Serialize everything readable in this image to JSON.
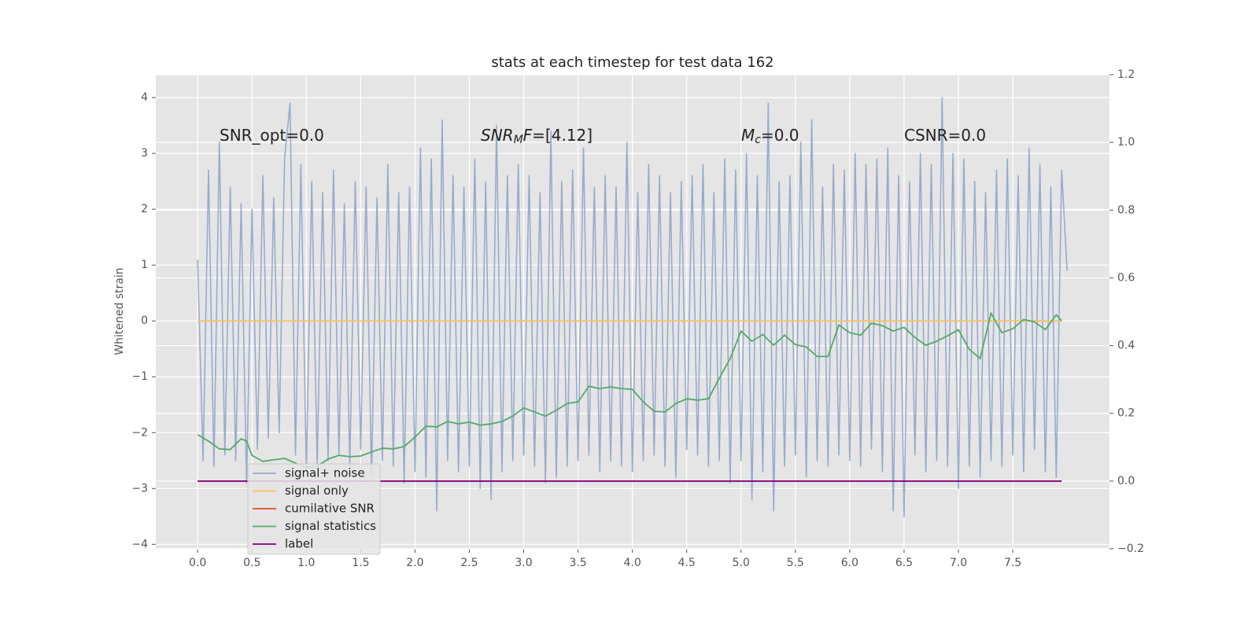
{
  "chart_data": {
    "type": "line",
    "title": "stats at each timestep for test data 162",
    "ylabel": "Whitened strain",
    "xlim": [
      -0.385,
      8.39
    ],
    "ylim": [
      -4.08,
      4.41
    ],
    "y2lim": [
      -0.2,
      1.2
    ],
    "xticks": [
      {
        "value": 0,
        "label": "0.0"
      },
      {
        "value": 0.5,
        "label": "0.5"
      },
      {
        "value": 1,
        "label": "1.0"
      },
      {
        "value": 1.5,
        "label": "1.5"
      },
      {
        "value": 2,
        "label": "2.0"
      },
      {
        "value": 2.5,
        "label": "2.5"
      },
      {
        "value": 3,
        "label": "3.0"
      },
      {
        "value": 3.5,
        "label": "3.5"
      },
      {
        "value": 4,
        "label": "4.0"
      },
      {
        "value": 4.5,
        "label": "4.5"
      },
      {
        "value": 5,
        "label": "5.0"
      },
      {
        "value": 5.5,
        "label": "5.5"
      },
      {
        "value": 6,
        "label": "6.0"
      },
      {
        "value": 6.5,
        "label": "6.5"
      },
      {
        "value": 7,
        "label": "7.0"
      },
      {
        "value": 7.5,
        "label": "7.5"
      }
    ],
    "yticks": [
      {
        "value": -4,
        "label": "−4"
      },
      {
        "value": -3,
        "label": "−3"
      },
      {
        "value": -2,
        "label": "−2"
      },
      {
        "value": -1,
        "label": "−1"
      },
      0,
      1,
      2,
      3,
      4
    ],
    "y2ticks": [
      {
        "value": -0.2,
        "label": "−0.2"
      },
      {
        "value": 0,
        "label": "0.0"
      },
      0.2,
      0.4,
      0.6,
      0.8,
      {
        "value": 1,
        "label": "1.0"
      },
      1.2
    ],
    "grid": true,
    "legend": "lower left",
    "annotations": [
      {
        "parts": [
          {
            "text": "SNR_opt=0.0"
          }
        ]
      },
      {
        "parts": [
          {
            "text": "SNR",
            "italic": true
          },
          {
            "text": "M",
            "italic": true,
            "sub": true
          },
          {
            "text": "F",
            "italic": true
          },
          {
            "text": "=[4.12]"
          }
        ]
      },
      {
        "parts": [
          {
            "text": "M",
            "italic": true
          },
          {
            "text": "c",
            "italic": true,
            "sub": true
          },
          {
            "text": "=0.0"
          }
        ]
      },
      {
        "parts": [
          {
            "text": "CSNR=0.0"
          }
        ]
      }
    ],
    "series": [
      {
        "name": "signal+ noise",
        "color": "#92a8cc",
        "axis": "y",
        "x": [
          0,
          0.05,
          0.1,
          0.15,
          0.2,
          0.25,
          0.3,
          0.35,
          0.4,
          0.45,
          0.5,
          0.55,
          0.6,
          0.65,
          0.7,
          0.75,
          0.8,
          0.85,
          0.9,
          0.95,
          1,
          1.05,
          1.1,
          1.15,
          1.2,
          1.25,
          1.3,
          1.35,
          1.4,
          1.45,
          1.5,
          1.55,
          1.6,
          1.65,
          1.7,
          1.75,
          1.8,
          1.85,
          1.9,
          1.95,
          2,
          2.05,
          2.1,
          2.15,
          2.2,
          2.25,
          2.3,
          2.35,
          2.4,
          2.45,
          2.5,
          2.55,
          2.6,
          2.65,
          2.7,
          2.75,
          2.8,
          2.85,
          2.9,
          2.95,
          3,
          3.05,
          3.1,
          3.15,
          3.2,
          3.25,
          3.3,
          3.35,
          3.4,
          3.45,
          3.5,
          3.55,
          3.6,
          3.65,
          3.7,
          3.75,
          3.8,
          3.85,
          3.9,
          3.95,
          4,
          4.05,
          4.1,
          4.15,
          4.2,
          4.25,
          4.3,
          4.35,
          4.4,
          4.45,
          4.5,
          4.55,
          4.6,
          4.65,
          4.7,
          4.75,
          4.8,
          4.85,
          4.9,
          4.95,
          5,
          5.05,
          5.1,
          5.15,
          5.2,
          5.25,
          5.3,
          5.35,
          5.4,
          5.45,
          5.5,
          5.55,
          5.6,
          5.65,
          5.7,
          5.75,
          5.8,
          5.85,
          5.9,
          5.95,
          6,
          6.05,
          6.1,
          6.15,
          6.2,
          6.25,
          6.3,
          6.35,
          6.4,
          6.45,
          6.5,
          6.55,
          6.6,
          6.65,
          6.7,
          6.75,
          6.8,
          6.85,
          6.9,
          6.95,
          7,
          7.05,
          7.1,
          7.15,
          7.2,
          7.25,
          7.3,
          7.35,
          7.4,
          7.45,
          7.5,
          7.55,
          7.6,
          7.65,
          7.7,
          7.75,
          7.8,
          7.85,
          7.9,
          7.95,
          8
        ],
        "values": [
          1.1,
          -2.5,
          2.7,
          -2.6,
          3.2,
          -2.4,
          2.4,
          -2.5,
          2.1,
          -2.9,
          2.0,
          -2.3,
          2.6,
          -2.1,
          2.2,
          -2.0,
          2.9,
          3.9,
          -2.4,
          2.8,
          -2.7,
          2.5,
          -2.6,
          2.3,
          -2.5,
          2.7,
          -2.4,
          2.1,
          -2.6,
          2.5,
          -2.3,
          2.4,
          -2.8,
          2.2,
          -2.5,
          2.8,
          -2.6,
          2.3,
          -2.9,
          2.4,
          -2.7,
          3.1,
          -2.8,
          2.9,
          -3.4,
          3.6,
          -2.5,
          2.6,
          -2.7,
          2.4,
          -2.6,
          2.9,
          -3.0,
          2.5,
          -3.2,
          3.5,
          -2.7,
          2.6,
          -2.5,
          2.8,
          -2.4,
          2.6,
          -2.6,
          2.3,
          -2.9,
          3.4,
          -2.8,
          2.5,
          -2.6,
          2.7,
          -2.5,
          3.1,
          -2.4,
          2.4,
          -2.7,
          2.6,
          -2.5,
          2.4,
          -2.6,
          3.2,
          -2.7,
          2.3,
          -2.5,
          2.8,
          -2.4,
          2.6,
          -2.6,
          2.3,
          -2.8,
          2.5,
          -2.3,
          2.6,
          -2.4,
          2.8,
          -2.6,
          2.3,
          -2.5,
          2.9,
          -2.9,
          2.7,
          -2.5,
          3.0,
          -3.2,
          2.6,
          -2.7,
          3.9,
          -3.4,
          2.5,
          -2.6,
          2.6,
          -2.4,
          3.2,
          -2.8,
          3.6,
          -2.5,
          2.4,
          -2.6,
          2.8,
          -2.4,
          2.7,
          -2.5,
          3.0,
          -2.6,
          2.8,
          -2.3,
          2.9,
          -2.7,
          3.1,
          -3.4,
          2.6,
          -3.5,
          2.5,
          -2.4,
          3.0,
          -2.7,
          2.8,
          -2.5,
          4.0,
          -2.6,
          3.0,
          -3.0,
          2.9,
          -2.6,
          2.5,
          -2.8,
          2.3,
          -2.5,
          2.7,
          -2.6,
          2.9,
          -2.4,
          2.6,
          -2.7,
          3.1,
          -2.3,
          2.8,
          -2.7,
          2.4,
          -2.8,
          2.7,
          0.9
        ]
      },
      {
        "name": "signal only",
        "color": "#fbc15e",
        "axis": "y",
        "x": [
          0,
          7.95
        ],
        "values": [
          0,
          0
        ]
      },
      {
        "name": "cumilative SNR",
        "color": "#e24a33",
        "axis": "y2",
        "x": [
          0,
          7.95
        ],
        "values": [
          0,
          0
        ]
      },
      {
        "name": "signal statistics",
        "color": "#55a868",
        "axis": "y2",
        "x": [
          0,
          0.1,
          0.2,
          0.3,
          0.4,
          0.45,
          0.5,
          0.6,
          0.7,
          0.8,
          0.9,
          1,
          1.1,
          1.2,
          1.3,
          1.4,
          1.5,
          1.6,
          1.7,
          1.8,
          1.9,
          2,
          2.1,
          2.2,
          2.3,
          2.4,
          2.5,
          2.6,
          2.7,
          2.8,
          2.9,
          3,
          3.1,
          3.2,
          3.3,
          3.4,
          3.5,
          3.6,
          3.7,
          3.8,
          3.9,
          4,
          4.1,
          4.2,
          4.3,
          4.4,
          4.5,
          4.6,
          4.7,
          4.8,
          4.9,
          5,
          5.1,
          5.2,
          5.3,
          5.4,
          5.5,
          5.6,
          5.7,
          5.8,
          5.9,
          6,
          6.1,
          6.2,
          6.3,
          6.4,
          6.5,
          6.6,
          6.7,
          6.8,
          6.9,
          7,
          7.1,
          7.2,
          7.3,
          7.4,
          7.5,
          7.6,
          7.7,
          7.8,
          7.9,
          7.95
        ],
        "values": [
          0.137,
          0.118,
          0.095,
          0.093,
          0.125,
          0.118,
          0.076,
          0.058,
          0.063,
          0.067,
          0.053,
          0.039,
          0.044,
          0.065,
          0.076,
          0.072,
          0.074,
          0.086,
          0.097,
          0.095,
          0.102,
          0.13,
          0.162,
          0.16,
          0.176,
          0.169,
          0.174,
          0.165,
          0.169,
          0.176,
          0.192,
          0.216,
          0.204,
          0.192,
          0.209,
          0.229,
          0.234,
          0.28,
          0.273,
          0.278,
          0.273,
          0.271,
          0.234,
          0.206,
          0.204,
          0.229,
          0.243,
          0.239,
          0.243,
          0.304,
          0.362,
          0.443,
          0.413,
          0.433,
          0.401,
          0.431,
          0.403,
          0.396,
          0.368,
          0.368,
          0.461,
          0.438,
          0.431,
          0.466,
          0.459,
          0.443,
          0.454,
          0.424,
          0.401,
          0.413,
          0.429,
          0.447,
          0.389,
          0.362,
          0.496,
          0.438,
          0.45,
          0.477,
          0.47,
          0.447,
          0.491,
          0.473
        ]
      },
      {
        "name": "label",
        "color": "#800080",
        "axis": "y2",
        "x": [
          0,
          7.95
        ],
        "values": [
          0,
          0
        ]
      }
    ]
  }
}
